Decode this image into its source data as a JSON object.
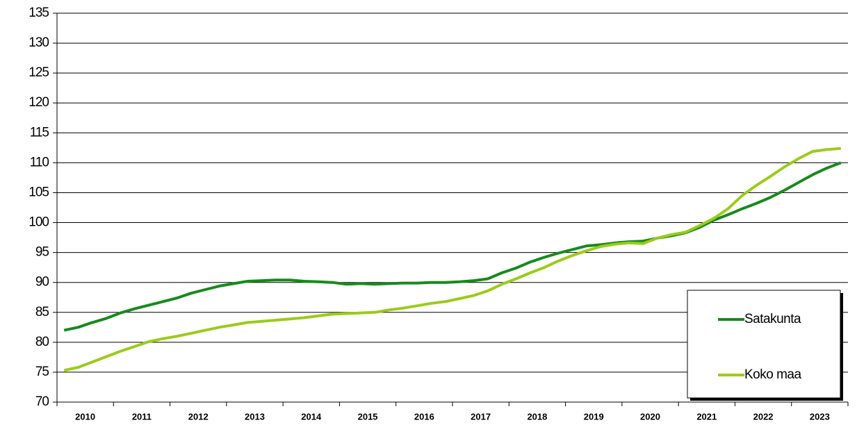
{
  "chart_data": {
    "type": "line",
    "categories": [
      "2010",
      null,
      null,
      null,
      "2011",
      null,
      null,
      null,
      "2012",
      null,
      null,
      null,
      "2013",
      null,
      null,
      null,
      "2014",
      null,
      null,
      null,
      "2015",
      null,
      null,
      null,
      "2016",
      null,
      null,
      null,
      "2017",
      null,
      null,
      null,
      "2018",
      null,
      null,
      null,
      "2019",
      null,
      null,
      null,
      "2020",
      null,
      null,
      null,
      "2021",
      null,
      null,
      null,
      "2022",
      null,
      null,
      null,
      "2023",
      null,
      null,
      null
    ],
    "series": [
      {
        "name": "Satakunta",
        "color": "#178a1c",
        "values": [
          82.0,
          82.5,
          83.3,
          84.0,
          84.9,
          85.6,
          86.2,
          86.8,
          87.4,
          88.2,
          88.8,
          89.4,
          89.8,
          90.2,
          90.3,
          90.4,
          90.4,
          90.2,
          90.1,
          90.0,
          89.7,
          89.8,
          89.7,
          89.8,
          89.9,
          89.9,
          90.0,
          90.0,
          90.1,
          90.3,
          90.6,
          91.6,
          92.4,
          93.4,
          94.2,
          94.9,
          95.5,
          96.1,
          96.3,
          96.6,
          96.8,
          96.9,
          97.4,
          97.8,
          98.3,
          99.2,
          100.4,
          101.3,
          102.3,
          103.2,
          104.2,
          105.4,
          106.7,
          108.0,
          109.1,
          110.0
        ]
      },
      {
        "name": "Koko maa",
        "color": "#9bcb1a",
        "values": [
          75.3,
          75.8,
          76.7,
          77.6,
          78.5,
          79.3,
          80.1,
          80.6,
          81.0,
          81.5,
          82.0,
          82.5,
          82.9,
          83.3,
          83.5,
          83.7,
          83.9,
          84.1,
          84.4,
          84.7,
          84.8,
          84.9,
          85.0,
          85.4,
          85.7,
          86.1,
          86.5,
          86.8,
          87.3,
          87.8,
          88.6,
          89.7,
          90.6,
          91.6,
          92.5,
          93.6,
          94.5,
          95.3,
          96.0,
          96.4,
          96.6,
          96.5,
          97.4,
          98.0,
          98.4,
          99.5,
          100.7,
          102.3,
          104.5,
          106.2,
          107.7,
          109.3,
          110.7,
          111.9,
          112.2,
          112.4
        ]
      }
    ],
    "ylim": [
      70,
      135
    ],
    "yticks": [
      70,
      75,
      80,
      85,
      90,
      95,
      100,
      105,
      110,
      115,
      120,
      125,
      130,
      135
    ],
    "grid": true,
    "legend": "lower right"
  }
}
